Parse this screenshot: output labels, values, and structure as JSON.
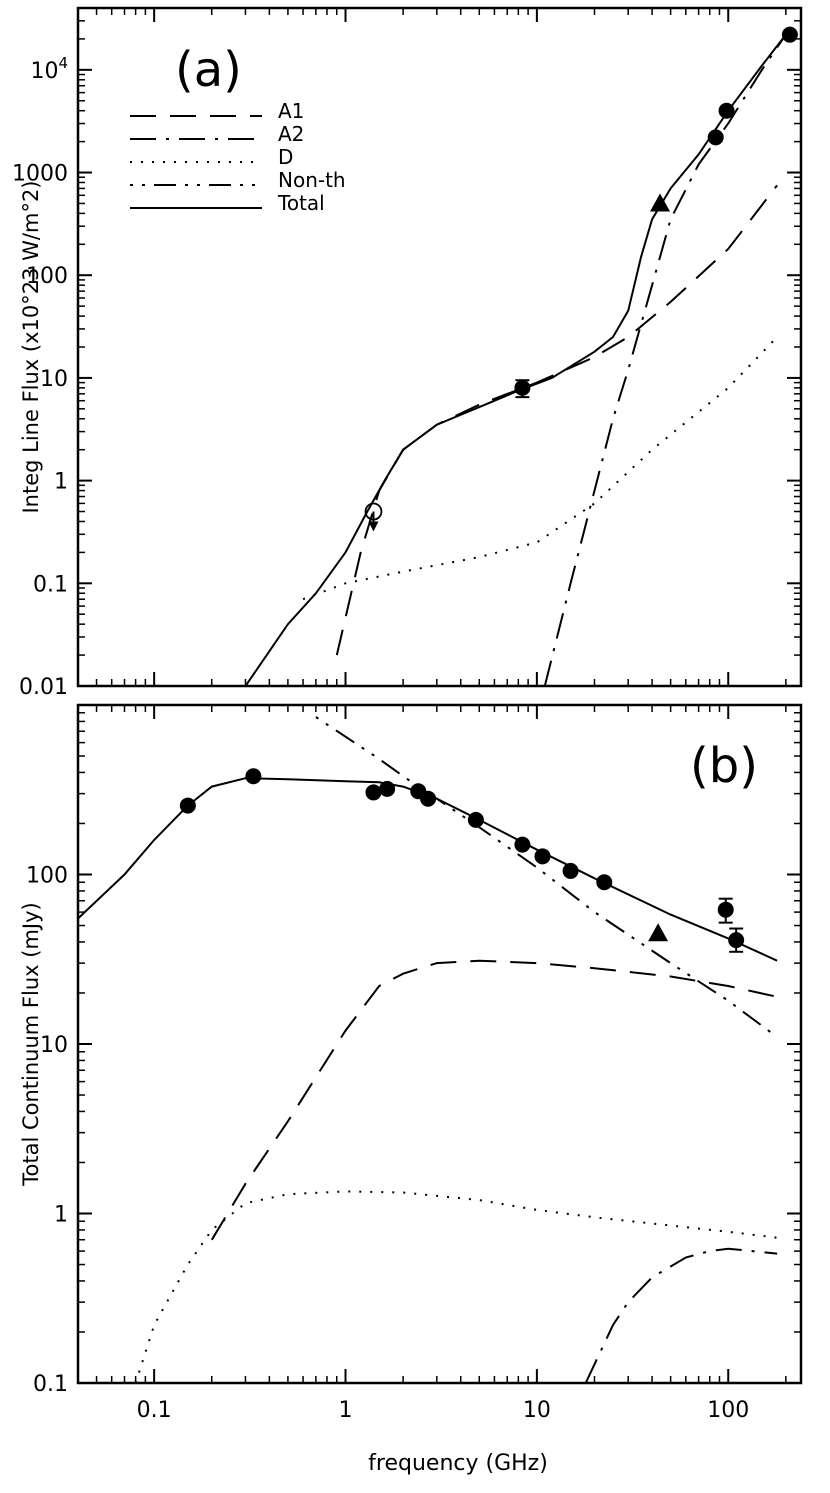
{
  "chart_data": [
    {
      "type": "line",
      "panel_label": "(a)",
      "ylabel": "Integ Line Flux   (x10^23 W/m^2)",
      "ylabel_display": "Integ Line Flux   (x10°23 W/m°2)",
      "xlabel": "",
      "xscale": "log",
      "yscale": "log",
      "xlim": [
        0.04,
        240
      ],
      "ylim": [
        0.01,
        40000
      ],
      "yticks": [
        0.01,
        0.1,
        1,
        10,
        100,
        1000,
        10000
      ],
      "ytick_labels": [
        "0.01",
        "0.1",
        "1",
        "10",
        "100",
        "1000",
        "10^4"
      ],
      "legend": {
        "position": "top-left",
        "entries": [
          {
            "label": "A1",
            "style": "long-dash"
          },
          {
            "label": "A2",
            "style": "dash-dot"
          },
          {
            "label": "D",
            "style": "dotted"
          },
          {
            "label": "Non-th",
            "style": "dot-dash"
          },
          {
            "label": "Total",
            "style": "solid"
          }
        ]
      },
      "series": [
        {
          "name": "A1",
          "style": "long-dash",
          "x": [
            0.9,
            1.2,
            1.5,
            2,
            3,
            5,
            10,
            20,
            30,
            50,
            100,
            180
          ],
          "y": [
            0.02,
            0.2,
            0.8,
            2,
            3.5,
            5.5,
            9,
            16,
            25,
            55,
            180,
            750
          ]
        },
        {
          "name": "A2",
          "style": "dash-dot",
          "x": [
            11,
            15,
            20,
            25,
            30,
            40,
            50,
            70,
            100,
            150,
            200
          ],
          "y": [
            0.01,
            0.1,
            0.8,
            4,
            12,
            80,
            350,
            1200,
            3000,
            10000,
            22000
          ]
        },
        {
          "name": "D",
          "style": "dotted",
          "x": [
            0.6,
            1,
            2,
            5,
            10,
            20,
            40,
            100,
            180
          ],
          "y": [
            0.07,
            0.1,
            0.13,
            0.18,
            0.25,
            0.6,
            2,
            8,
            25
          ]
        },
        {
          "name": "Total",
          "style": "solid",
          "x": [
            0.3,
            0.5,
            0.7,
            1,
            1.3,
            1.6,
            2,
            3,
            5,
            8,
            12,
            20,
            25,
            30,
            35,
            40,
            50,
            70,
            100,
            150,
            200
          ],
          "y": [
            0.01,
            0.04,
            0.08,
            0.2,
            0.5,
            1.0,
            2.0,
            3.5,
            5.2,
            7.5,
            10,
            18,
            25,
            45,
            150,
            350,
            700,
            1500,
            4000,
            11000,
            22000
          ]
        }
      ],
      "points": [
        {
          "x": 1.4,
          "y": 0.5,
          "marker": "open-circle",
          "upper_limit": true
        },
        {
          "x": 8.4,
          "y": 8,
          "marker": "filled-circle",
          "error": [
            6.5,
            9.5
          ]
        },
        {
          "x": 44,
          "y": 500,
          "marker": "filled-triangle"
        },
        {
          "x": 86,
          "y": 2200,
          "marker": "filled-circle"
        },
        {
          "x": 98,
          "y": 4000,
          "marker": "filled-circle"
        },
        {
          "x": 210,
          "y": 22000,
          "marker": "filled-circle"
        }
      ]
    },
    {
      "type": "line",
      "panel_label": "(b)",
      "ylabel": "Total Continuum Flux  (mJy)",
      "xlabel": "frequency  (GHz)",
      "xscale": "log",
      "yscale": "log",
      "xlim": [
        0.04,
        240
      ],
      "ylim": [
        0.1,
        1000
      ],
      "xticks": [
        0.1,
        1,
        10,
        100
      ],
      "xtick_labels": [
        "0.1",
        "1",
        "10",
        "100"
      ],
      "yticks": [
        0.1,
        1,
        10,
        100
      ],
      "ytick_labels": [
        "0.1",
        "1",
        "10",
        "100"
      ],
      "series": [
        {
          "name": "A1",
          "style": "long-dash",
          "x": [
            0.2,
            0.3,
            0.5,
            1,
            1.5,
            2,
            3,
            5,
            10,
            20,
            50,
            100,
            180
          ],
          "y": [
            0.7,
            1.5,
            3.5,
            12,
            22,
            26,
            30,
            31,
            30,
            28,
            25,
            22,
            19
          ]
        },
        {
          "name": "A2",
          "style": "dash-dot",
          "x": [
            18,
            25,
            30,
            40,
            60,
            80,
            100,
            180
          ],
          "y": [
            0.1,
            0.22,
            0.3,
            0.42,
            0.55,
            0.6,
            0.62,
            0.58
          ]
        },
        {
          "name": "D",
          "style": "dotted",
          "x": [
            0.08,
            0.1,
            0.15,
            0.2,
            0.3,
            0.5,
            1,
            2,
            5,
            10,
            20,
            50,
            100,
            180
          ],
          "y": [
            0.1,
            0.22,
            0.5,
            0.8,
            1.15,
            1.3,
            1.35,
            1.33,
            1.2,
            1.05,
            0.95,
            0.85,
            0.78,
            0.72
          ]
        },
        {
          "name": "Non-th",
          "style": "dot-dash",
          "x": [
            0.7,
            1,
            1.5,
            2,
            3,
            5,
            10,
            20,
            50,
            100,
            180
          ],
          "y": [
            850,
            650,
            480,
            380,
            280,
            190,
            110,
            60,
            30,
            18,
            11
          ]
        },
        {
          "name": "Total",
          "style": "solid",
          "x": [
            0.04,
            0.07,
            0.1,
            0.15,
            0.2,
            0.3,
            0.5,
            1,
            1.5,
            2,
            3,
            5,
            10,
            20,
            50,
            100,
            180
          ],
          "y": [
            55,
            100,
            160,
            255,
            330,
            370,
            365,
            355,
            350,
            330,
            280,
            210,
            140,
            95,
            58,
            42,
            31
          ]
        }
      ],
      "points": [
        {
          "x": 0.15,
          "y": 255,
          "marker": "filled-circle"
        },
        {
          "x": 0.33,
          "y": 380,
          "marker": "filled-circle"
        },
        {
          "x": 1.4,
          "y": 305,
          "marker": "filled-circle"
        },
        {
          "x": 1.65,
          "y": 320,
          "marker": "filled-circle"
        },
        {
          "x": 2.4,
          "y": 310,
          "marker": "filled-circle"
        },
        {
          "x": 2.7,
          "y": 280,
          "marker": "filled-circle"
        },
        {
          "x": 4.8,
          "y": 210,
          "marker": "filled-circle"
        },
        {
          "x": 8.4,
          "y": 150,
          "marker": "filled-circle"
        },
        {
          "x": 10.7,
          "y": 128,
          "marker": "filled-circle"
        },
        {
          "x": 15,
          "y": 105,
          "marker": "filled-circle"
        },
        {
          "x": 22.5,
          "y": 90,
          "marker": "filled-circle"
        },
        {
          "x": 43,
          "y": 45,
          "marker": "filled-triangle"
        },
        {
          "x": 97,
          "y": 62,
          "marker": "filled-circle",
          "error": [
            52,
            72
          ]
        },
        {
          "x": 110,
          "y": 41,
          "marker": "filled-circle",
          "error": [
            35,
            48
          ]
        }
      ]
    }
  ]
}
